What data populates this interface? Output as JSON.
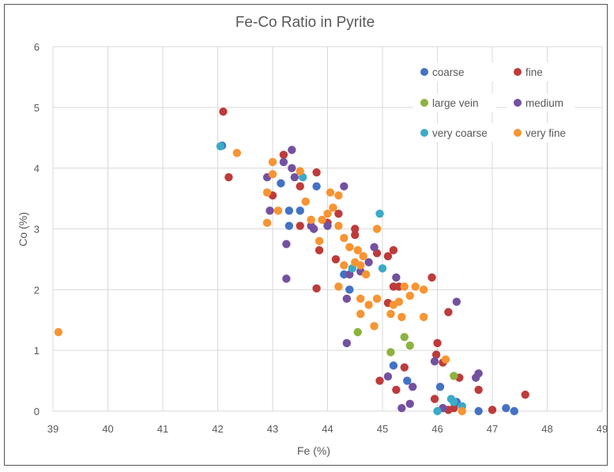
{
  "chart_data": {
    "type": "scatter",
    "title": "Fe-Co Ratio in Pyrite",
    "xlabel": "Fe (%)",
    "ylabel": "Co (%)",
    "xlim": [
      39,
      49
    ],
    "ylim": [
      0,
      6
    ],
    "xticks": [
      "39",
      "40",
      "41",
      "42",
      "43",
      "44",
      "45",
      "46",
      "47",
      "48",
      "49"
    ],
    "yticks": [
      "0",
      "1",
      "2",
      "3",
      "4",
      "5",
      "6"
    ],
    "grid": true,
    "legend_position": "top-right",
    "series": [
      {
        "name": "coarse",
        "color": "#4472C4",
        "points": [
          [
            42.08,
            4.37
          ],
          [
            43.15,
            3.75
          ],
          [
            43.3,
            3.3
          ],
          [
            43.8,
            3.7
          ],
          [
            43.5,
            3.3
          ],
          [
            43.3,
            3.05
          ],
          [
            44.4,
            2.0
          ],
          [
            44.3,
            2.25
          ],
          [
            46.05,
            0.4
          ],
          [
            45.45,
            0.5
          ],
          [
            45.2,
            0.75
          ],
          [
            47.25,
            0.05
          ],
          [
            47.4,
            0.0
          ],
          [
            46.75,
            0.0
          ],
          [
            46.1,
            0.05
          ],
          [
            46.35,
            0.15
          ]
        ]
      },
      {
        "name": "fine",
        "color": "#BE3B3B",
        "points": [
          [
            42.1,
            4.93
          ],
          [
            42.2,
            3.85
          ],
          [
            43.2,
            4.22
          ],
          [
            43.8,
            3.93
          ],
          [
            43.5,
            3.7
          ],
          [
            43.0,
            3.55
          ],
          [
            43.5,
            3.05
          ],
          [
            43.85,
            2.65
          ],
          [
            43.8,
            2.02
          ],
          [
            44.15,
            2.5
          ],
          [
            44.2,
            3.25
          ],
          [
            44.5,
            3.0
          ],
          [
            44.9,
            2.6
          ],
          [
            45.1,
            2.55
          ],
          [
            45.2,
            2.65
          ],
          [
            45.2,
            2.05
          ],
          [
            45.3,
            2.05
          ],
          [
            45.9,
            2.2
          ],
          [
            45.1,
            1.78
          ],
          [
            46.2,
            1.63
          ],
          [
            46.0,
            1.12
          ],
          [
            45.98,
            0.93
          ],
          [
            46.1,
            0.8
          ],
          [
            46.4,
            0.55
          ],
          [
            45.4,
            0.72
          ],
          [
            44.95,
            0.5
          ],
          [
            45.25,
            0.35
          ],
          [
            46.75,
            0.35
          ],
          [
            47.0,
            0.02
          ],
          [
            47.6,
            0.27
          ],
          [
            46.2,
            0.02
          ],
          [
            46.3,
            0.05
          ],
          [
            45.95,
            0.2
          ],
          [
            44.5,
            2.9
          ],
          [
            44.0,
            3.1
          ]
        ]
      },
      {
        "name": "large vein",
        "color": "#8DB33F",
        "points": [
          [
            44.55,
            1.3
          ],
          [
            45.15,
            0.97
          ],
          [
            45.4,
            1.22
          ],
          [
            45.5,
            1.08
          ],
          [
            46.3,
            0.58
          ]
        ]
      },
      {
        "name": "medium",
        "color": "#7451A0",
        "points": [
          [
            43.35,
            4.3
          ],
          [
            43.2,
            4.1
          ],
          [
            42.9,
            3.85
          ],
          [
            43.35,
            4.0
          ],
          [
            43.4,
            3.85
          ],
          [
            42.95,
            3.3
          ],
          [
            43.25,
            2.75
          ],
          [
            43.25,
            2.18
          ],
          [
            44.3,
            3.7
          ],
          [
            44.35,
            1.85
          ],
          [
            44.35,
            1.12
          ],
          [
            44.85,
            2.7
          ],
          [
            45.25,
            2.2
          ],
          [
            46.35,
            1.8
          ],
          [
            45.95,
            0.82
          ],
          [
            45.1,
            0.57
          ],
          [
            45.55,
            0.4
          ],
          [
            45.35,
            0.05
          ],
          [
            45.5,
            0.12
          ],
          [
            46.7,
            0.55
          ],
          [
            46.75,
            0.62
          ],
          [
            46.1,
            0.05
          ],
          [
            43.7,
            3.05
          ],
          [
            44.0,
            3.05
          ],
          [
            44.4,
            2.25
          ],
          [
            43.75,
            3.0
          ],
          [
            44.75,
            2.45
          ],
          [
            44.6,
            2.3
          ]
        ]
      },
      {
        "name": "very coarse",
        "color": "#3BAAC8",
        "points": [
          [
            42.05,
            4.36
          ],
          [
            43.55,
            3.85
          ],
          [
            44.95,
            3.25
          ],
          [
            45.0,
            2.35
          ],
          [
            44.45,
            2.35
          ],
          [
            46.25,
            0.2
          ],
          [
            46.3,
            0.15
          ],
          [
            46.45,
            0.08
          ],
          [
            46.0,
            0.0
          ]
        ]
      },
      {
        "name": "very fine",
        "color": "#F79433",
        "points": [
          [
            39.1,
            1.3
          ],
          [
            42.35,
            4.25
          ],
          [
            43.0,
            4.1
          ],
          [
            42.9,
            3.6
          ],
          [
            42.9,
            3.1
          ],
          [
            43.0,
            3.9
          ],
          [
            43.1,
            3.3
          ],
          [
            43.5,
            3.95
          ],
          [
            43.6,
            3.45
          ],
          [
            43.7,
            3.15
          ],
          [
            43.9,
            3.15
          ],
          [
            44.0,
            3.25
          ],
          [
            44.05,
            3.6
          ],
          [
            44.2,
            3.55
          ],
          [
            44.2,
            3.05
          ],
          [
            44.3,
            2.85
          ],
          [
            44.4,
            2.7
          ],
          [
            44.5,
            2.45
          ],
          [
            44.6,
            2.4
          ],
          [
            44.65,
            2.55
          ],
          [
            44.7,
            2.25
          ],
          [
            44.9,
            3.0
          ],
          [
            44.55,
            2.65
          ],
          [
            44.2,
            2.05
          ],
          [
            44.6,
            1.85
          ],
          [
            44.75,
            1.75
          ],
          [
            44.6,
            1.6
          ],
          [
            44.85,
            1.4
          ],
          [
            45.15,
            1.6
          ],
          [
            45.2,
            1.75
          ],
          [
            45.35,
            1.55
          ],
          [
            45.4,
            2.05
          ],
          [
            45.5,
            1.9
          ],
          [
            45.6,
            2.05
          ],
          [
            45.75,
            2.0
          ],
          [
            45.75,
            1.55
          ],
          [
            46.15,
            0.85
          ],
          [
            46.45,
            0.0
          ],
          [
            44.9,
            1.85
          ],
          [
            45.3,
            1.8
          ],
          [
            44.3,
            2.4
          ],
          [
            43.85,
            2.8
          ],
          [
            44.1,
            3.35
          ]
        ]
      }
    ]
  }
}
